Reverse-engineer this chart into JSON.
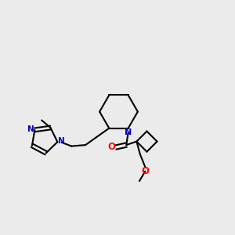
{
  "bg_color": "#ebebeb",
  "bond_color": "#000000",
  "nitrogen_color": "#0000cc",
  "oxygen_color": "#ff0000",
  "line_width": 1.5,
  "figsize": [
    3.0,
    3.0
  ],
  "dpi": 100,
  "xlim": [
    0,
    10
  ],
  "ylim": [
    0,
    10
  ]
}
